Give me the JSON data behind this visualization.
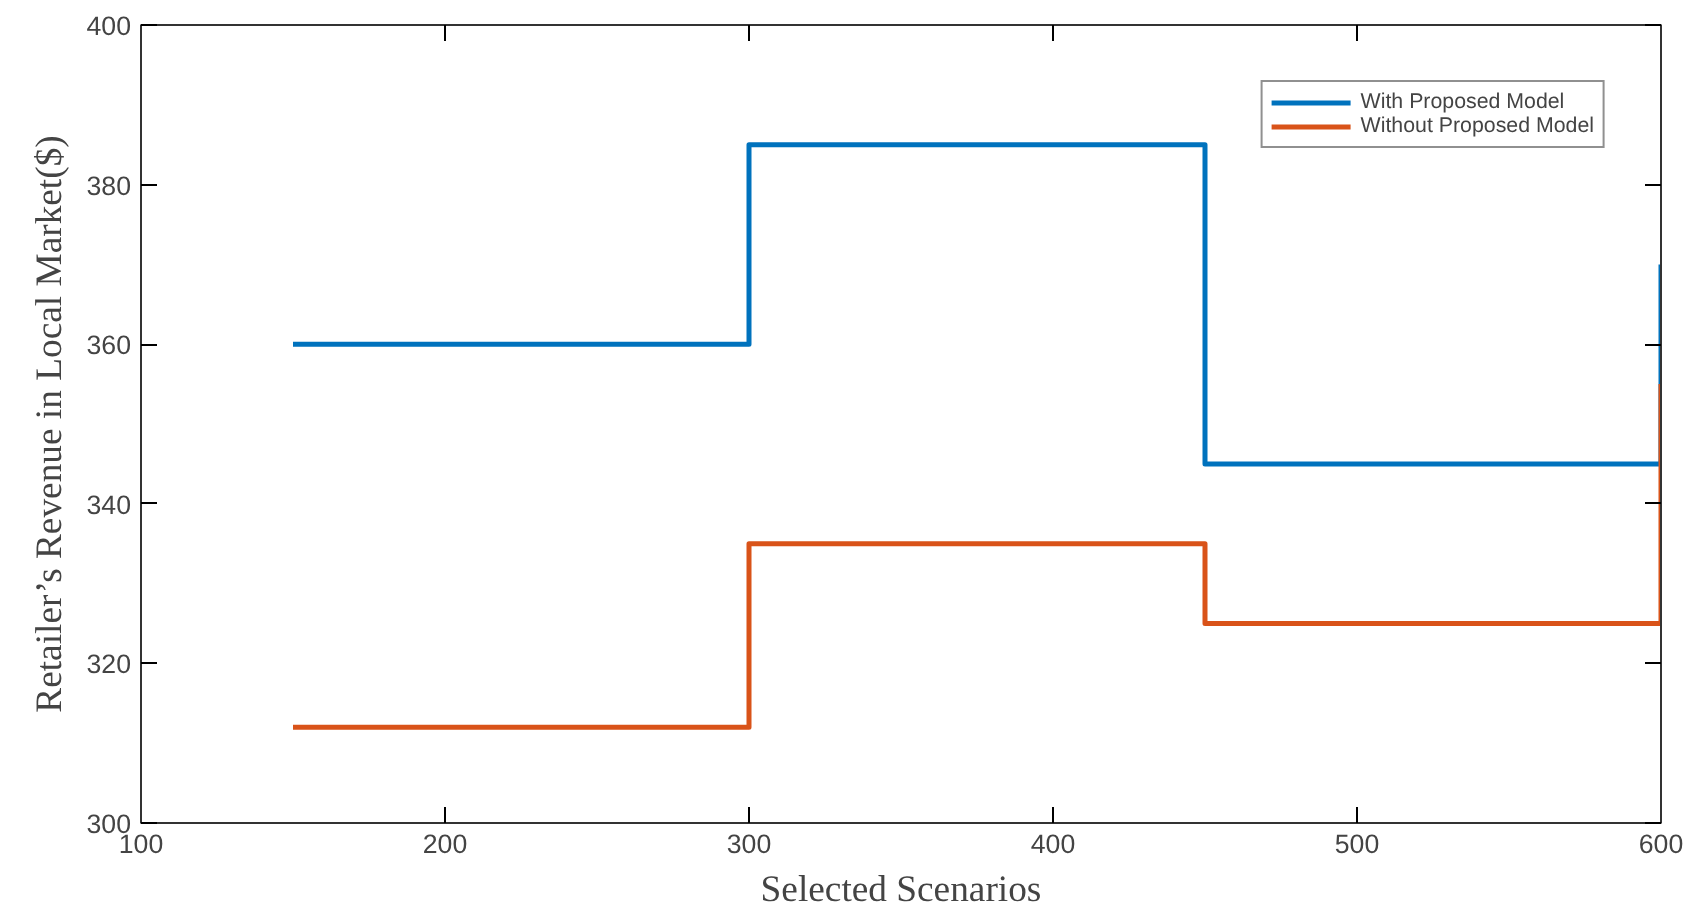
{
  "chart_data": {
    "type": "step",
    "xlabel": "Selected Scenarios",
    "ylabel": "Retailer’s Revenue in Local Market($)",
    "xlim": [
      100,
      600
    ],
    "ylim": [
      300,
      400
    ],
    "xticks": [
      100,
      200,
      300,
      400,
      500,
      600
    ],
    "yticks": [
      300,
      320,
      340,
      360,
      380,
      400
    ],
    "grid": false,
    "legend": "top right",
    "line_style": "solid",
    "series": [
      {
        "name": "With Proposed Model",
        "color": "#0072bd",
        "x": [
          150,
          300,
          450,
          600,
          600
        ],
        "values": [
          360,
          385,
          345,
          345,
          370
        ]
      },
      {
        "name": "Without Proposed Model",
        "color": "#d95319",
        "x": [
          150,
          300,
          450,
          600,
          600
        ],
        "values": [
          312,
          335,
          325,
          325,
          355
        ]
      }
    ]
  }
}
